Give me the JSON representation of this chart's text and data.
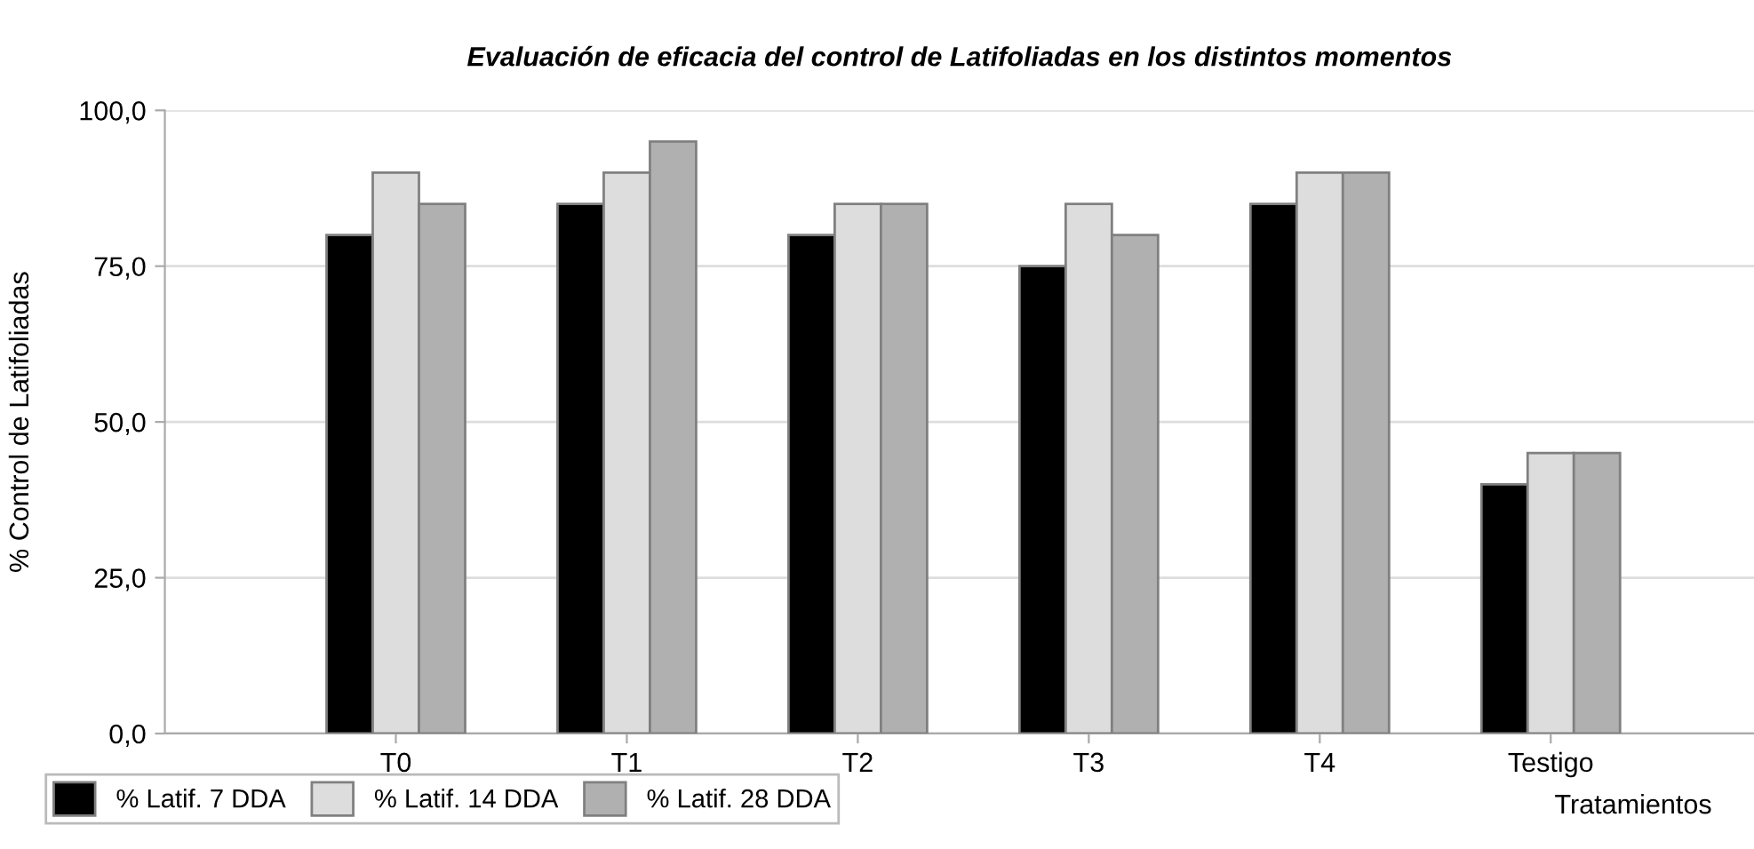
{
  "chart_data": {
    "type": "bar",
    "title": "Evaluación de eficacia del control de Latifoliadas en los distintos momentos",
    "xlabel": "Tratamientos",
    "ylabel": "% Control de Latifoliadas",
    "categories": [
      "T0",
      "T1",
      "T2",
      "T3",
      "T4",
      "Testigo"
    ],
    "series": [
      {
        "name": "% Latif. 7 DDA",
        "color": "#000000",
        "values": [
          80,
          85,
          80,
          75,
          85,
          40
        ]
      },
      {
        "name": "% Latif. 14 DDA",
        "color": "#dddddd",
        "values": [
          90,
          90,
          85,
          85,
          90,
          45
        ]
      },
      {
        "name": "% Latif. 28 DDA",
        "color": "#b0b0b0",
        "values": [
          85,
          95,
          85,
          80,
          90,
          45
        ]
      }
    ],
    "ylim": [
      0,
      100
    ],
    "yticks": [
      {
        "value": 0,
        "label": "0,0"
      },
      {
        "value": 25,
        "label": "25,0"
      },
      {
        "value": 50,
        "label": "50,0"
      },
      {
        "value": 75,
        "label": "75,0"
      },
      {
        "value": 100,
        "label": "100,0"
      }
    ],
    "grid": "y",
    "legend": "bottom left"
  }
}
